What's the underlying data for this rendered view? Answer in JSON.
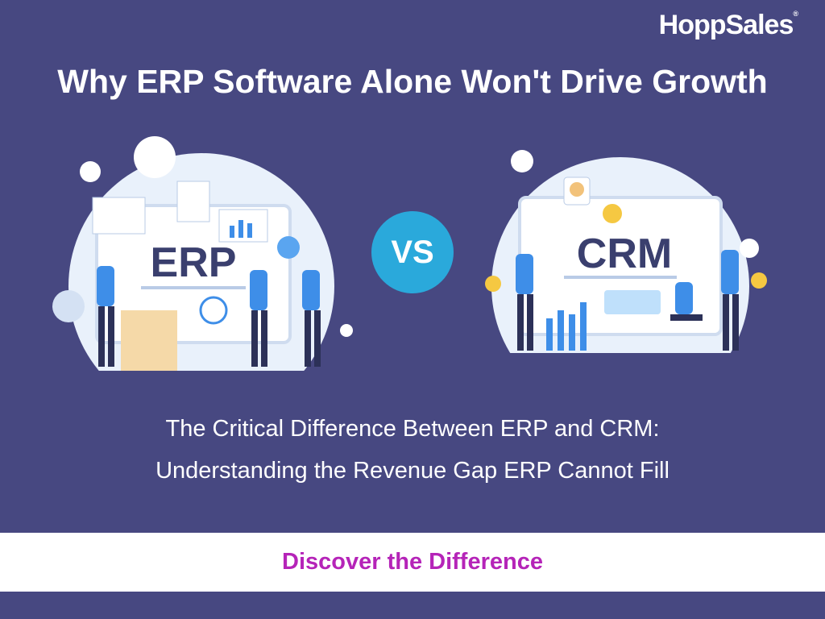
{
  "brand": {
    "logo_text": "HoppSales",
    "registered": "®"
  },
  "title": "Why ERP Software Alone Won't Drive Growth",
  "left_panel": {
    "label": "ERP"
  },
  "vs_label": "VS",
  "right_panel": {
    "label": "CRM"
  },
  "subtitle": {
    "line1": "The Critical Difference Between ERP and CRM:",
    "line2": "Understanding the Revenue Gap ERP Cannot Fill"
  },
  "cta": {
    "label": "Discover the Difference"
  },
  "colors": {
    "background": "#474881",
    "accent": "#2aa9db",
    "cta_text": "#b524b8",
    "band": "#ffffff"
  }
}
